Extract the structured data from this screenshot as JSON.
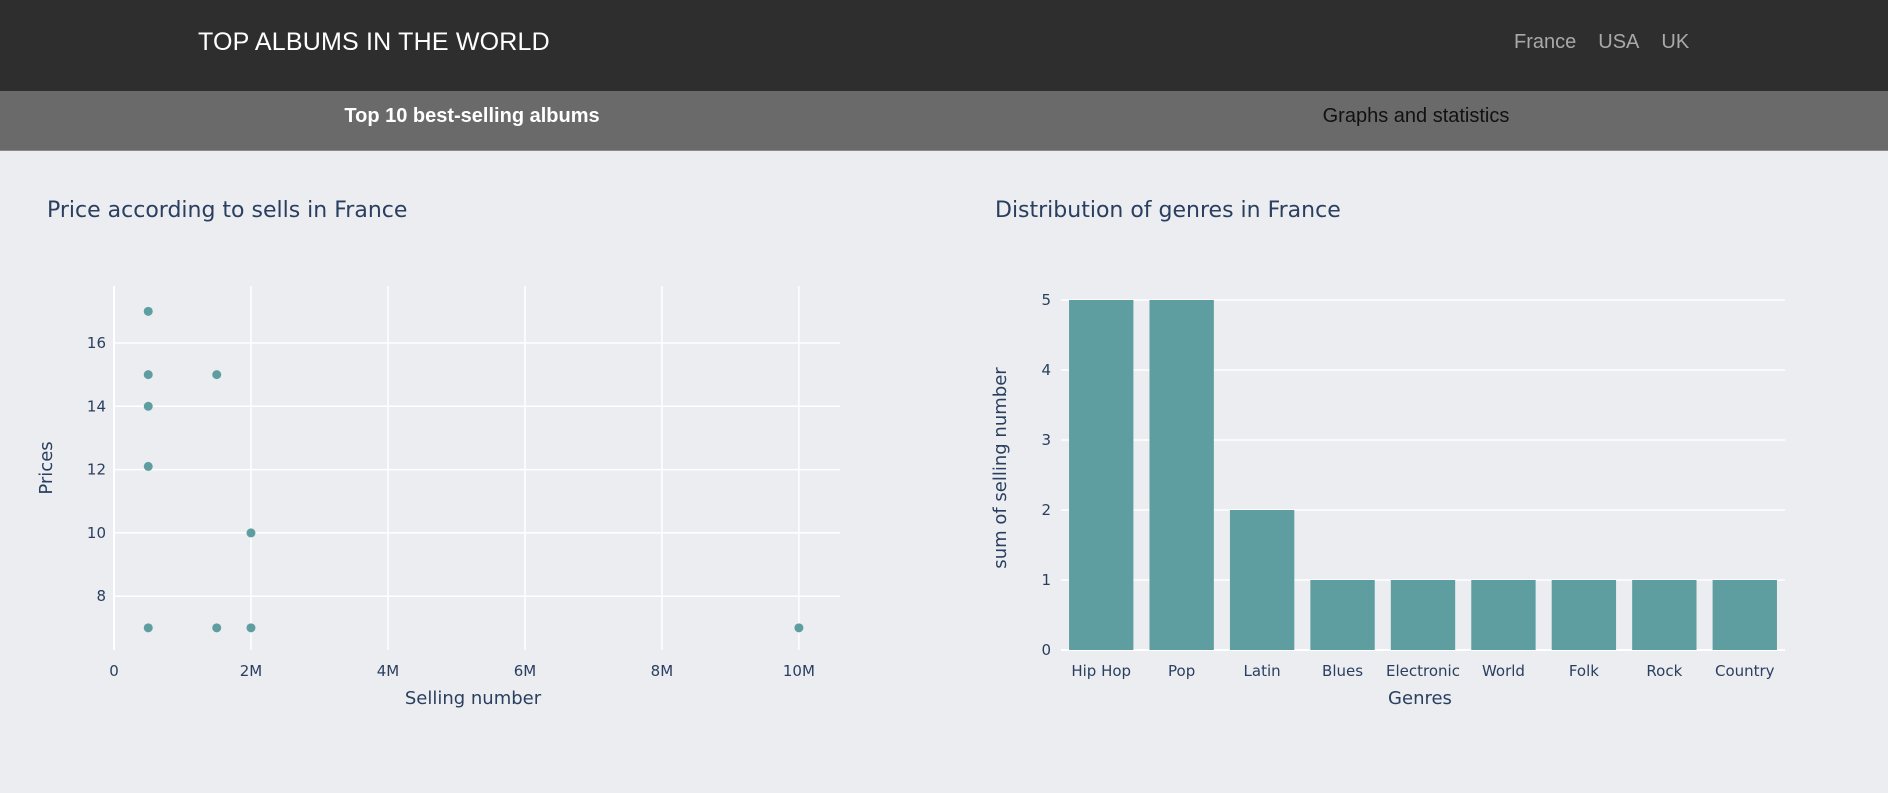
{
  "header": {
    "title": "TOP ALBUMS IN THE WORLD",
    "nav": [
      "France",
      "USA",
      "UK"
    ]
  },
  "tabs": {
    "active": "Top 10 best-selling albums",
    "inactive": "Graphs and statistics"
  },
  "colors": {
    "marker": "#5f9ea0",
    "bar": "#5f9ea0",
    "grid": "#ffffff",
    "text": "#2a3f5f",
    "background": "#ebedf0"
  },
  "chart_data": [
    {
      "type": "scatter",
      "title": "Price according to sells in France",
      "xlabel": "Selling number",
      "ylabel": "Prices",
      "xlim": [
        0,
        10600000
      ],
      "ylim": [
        6.3,
        17.8
      ],
      "xticks": [
        0,
        2000000,
        4000000,
        6000000,
        8000000,
        10000000
      ],
      "xtick_labels": [
        "0",
        "2M",
        "4M",
        "6M",
        "8M",
        "10M"
      ],
      "yticks": [
        8,
        10,
        12,
        14,
        16
      ],
      "ytick_labels": [
        "8",
        "10",
        "12",
        "14",
        "16"
      ],
      "grid": true,
      "points": [
        {
          "x": 500000,
          "y": 17
        },
        {
          "x": 500000,
          "y": 15
        },
        {
          "x": 1500000,
          "y": 15
        },
        {
          "x": 500000,
          "y": 14
        },
        {
          "x": 500000,
          "y": 12.1
        },
        {
          "x": 2000000,
          "y": 10
        },
        {
          "x": 500000,
          "y": 7
        },
        {
          "x": 1500000,
          "y": 7
        },
        {
          "x": 2000000,
          "y": 7
        },
        {
          "x": 10000000,
          "y": 7
        }
      ]
    },
    {
      "type": "bar",
      "title": "Distribution of genres in France",
      "xlabel": "Genres",
      "ylabel": "sum of selling number",
      "ylim": [
        0,
        5.2
      ],
      "yticks": [
        0,
        1,
        2,
        3,
        4,
        5
      ],
      "ytick_labels": [
        "0",
        "1",
        "2",
        "3",
        "4",
        "5"
      ],
      "grid": true,
      "categories": [
        "Hip Hop",
        "Pop",
        "Latin",
        "Blues",
        "Electronic",
        "World",
        "Folk",
        "Rock",
        "Country"
      ],
      "values": [
        5,
        5,
        2,
        1,
        1,
        1,
        1,
        1,
        1
      ]
    }
  ]
}
